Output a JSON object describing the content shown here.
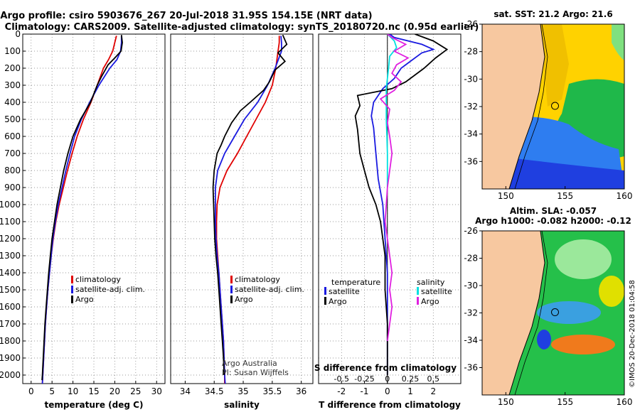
{
  "header": {
    "title_line1": "Argo profile: csiro 5903676_267 20-Jul-2018 31.95S 154.15E (NRT data)",
    "title_line2": "Climatology: CARS2009. Satellite-adjusted climatology: synTS_20180720.nc (0.95d earlier)"
  },
  "colors": {
    "climatology": "#e00000",
    "satellite": "#1a1ae0",
    "argo": "#000000",
    "sat_salinity": "#00e0e0",
    "argo_salinity": "#e020e0",
    "land": "#f7c8a0"
  },
  "chart_data": [
    {
      "id": "temperature",
      "type": "line",
      "xlabel": "temperature (deg C)",
      "ylabel": "",
      "xlim": [
        -2,
        32
      ],
      "xticks": [
        0,
        5,
        10,
        15,
        20,
        25,
        30
      ],
      "ylim": [
        2050,
        0
      ],
      "yticks": [
        0,
        100,
        200,
        300,
        400,
        500,
        600,
        700,
        800,
        900,
        1000,
        1100,
        1200,
        1300,
        1400,
        1500,
        1600,
        1700,
        1800,
        1900,
        2000
      ],
      "legend": [
        "climatology",
        "satellite-adj. clim.",
        "Argo"
      ],
      "series": [
        {
          "name": "climatology",
          "color": "#e00000",
          "points": [
            [
              20.4,
              10
            ],
            [
              20.0,
              50
            ],
            [
              19.5,
              100
            ],
            [
              18.5,
              150
            ],
            [
              17.3,
              200
            ],
            [
              15.8,
              300
            ],
            [
              14.3,
              400
            ],
            [
              12.5,
              500
            ],
            [
              11.0,
              600
            ],
            [
              9.8,
              700
            ],
            [
              8.7,
              800
            ],
            [
              7.7,
              900
            ],
            [
              6.7,
              1000
            ],
            [
              5.9,
              1100
            ],
            [
              5.3,
              1200
            ],
            [
              4.8,
              1300
            ],
            [
              4.4,
              1400
            ],
            [
              4.0,
              1500
            ],
            [
              3.7,
              1600
            ],
            [
              3.4,
              1700
            ],
            [
              3.2,
              1800
            ],
            [
              3.0,
              1900
            ],
            [
              2.8,
              2000
            ],
            [
              2.7,
              2050
            ]
          ]
        },
        {
          "name": "satellite-adj. clim.",
          "color": "#1a1ae0",
          "points": [
            [
              21.6,
              10
            ],
            [
              21.6,
              50
            ],
            [
              21.4,
              100
            ],
            [
              20.5,
              150
            ],
            [
              18.8,
              200
            ],
            [
              16.2,
              300
            ],
            [
              14.0,
              400
            ],
            [
              12.0,
              500
            ],
            [
              10.4,
              600
            ],
            [
              9.3,
              700
            ],
            [
              8.3,
              800
            ],
            [
              7.4,
              900
            ],
            [
              6.5,
              1000
            ],
            [
              5.8,
              1100
            ],
            [
              5.2,
              1200
            ],
            [
              4.8,
              1300
            ],
            [
              4.4,
              1400
            ],
            [
              4.0,
              1500
            ],
            [
              3.7,
              1600
            ],
            [
              3.4,
              1700
            ],
            [
              3.2,
              1800
            ],
            [
              3.0,
              1900
            ],
            [
              2.8,
              2000
            ],
            [
              2.7,
              2050
            ]
          ]
        },
        {
          "name": "Argo",
          "color": "#000000",
          "points": [
            [
              21.6,
              5
            ],
            [
              21.8,
              50
            ],
            [
              21.5,
              100
            ],
            [
              20.0,
              140
            ],
            [
              18.4,
              180
            ],
            [
              16.8,
              250
            ],
            [
              15.8,
              300
            ],
            [
              14.2,
              400
            ],
            [
              11.8,
              500
            ],
            [
              10.0,
              600
            ],
            [
              8.8,
              700
            ],
            [
              7.8,
              800
            ],
            [
              7.0,
              900
            ],
            [
              6.2,
              1000
            ],
            [
              5.6,
              1100
            ],
            [
              5.0,
              1200
            ],
            [
              4.6,
              1300
            ],
            [
              4.2,
              1400
            ],
            [
              3.9,
              1500
            ],
            [
              3.6,
              1600
            ],
            [
              3.3,
              1700
            ],
            [
              3.1,
              1800
            ],
            [
              2.9,
              1900
            ],
            [
              2.7,
              2000
            ],
            [
              2.6,
              2030
            ]
          ]
        }
      ]
    },
    {
      "id": "salinity",
      "type": "line",
      "xlabel": "salinity",
      "ylabel": "",
      "xlim": [
        33.75,
        36.2
      ],
      "xticks": [
        34,
        34.5,
        35,
        35.5,
        36
      ],
      "ylim": [
        2050,
        0
      ],
      "legend": [
        "climatology",
        "satellite-adj. clim.",
        "Argo"
      ],
      "annotation": [
        "Argo Australia",
        "PI: Susan Wijffels"
      ],
      "series": [
        {
          "name": "climatology",
          "color": "#e00000",
          "points": [
            [
              35.62,
              10
            ],
            [
              35.62,
              50
            ],
            [
              35.6,
              100
            ],
            [
              35.56,
              200
            ],
            [
              35.5,
              300
            ],
            [
              35.38,
              400
            ],
            [
              35.22,
              500
            ],
            [
              35.06,
              600
            ],
            [
              34.9,
              700
            ],
            [
              34.72,
              800
            ],
            [
              34.6,
              900
            ],
            [
              34.55,
              1000
            ],
            [
              34.54,
              1100
            ],
            [
              34.54,
              1200
            ],
            [
              34.56,
              1300
            ],
            [
              34.58,
              1400
            ],
            [
              34.6,
              1500
            ],
            [
              34.62,
              1600
            ],
            [
              34.64,
              1700
            ],
            [
              34.66,
              1800
            ],
            [
              34.67,
              1900
            ],
            [
              34.68,
              2000
            ],
            [
              34.68,
              2050
            ]
          ]
        },
        {
          "name": "satellite-adj. clim.",
          "color": "#1a1ae0",
          "points": [
            [
              35.65,
              10
            ],
            [
              35.66,
              50
            ],
            [
              35.66,
              100
            ],
            [
              35.55,
              200
            ],
            [
              35.42,
              300
            ],
            [
              35.25,
              400
            ],
            [
              35.02,
              500
            ],
            [
              34.85,
              600
            ],
            [
              34.68,
              700
            ],
            [
              34.56,
              800
            ],
            [
              34.52,
              900
            ],
            [
              34.52,
              1000
            ],
            [
              34.52,
              1100
            ],
            [
              34.53,
              1200
            ],
            [
              34.55,
              1300
            ],
            [
              34.58,
              1400
            ],
            [
              34.6,
              1500
            ],
            [
              34.62,
              1600
            ],
            [
              34.64,
              1700
            ],
            [
              34.66,
              1800
            ],
            [
              34.67,
              1900
            ],
            [
              34.68,
              2000
            ],
            [
              34.69,
              2050
            ]
          ]
        },
        {
          "name": "Argo",
          "color": "#000000",
          "points": [
            [
              35.68,
              5
            ],
            [
              35.75,
              60
            ],
            [
              35.6,
              110
            ],
            [
              35.72,
              160
            ],
            [
              35.55,
              210
            ],
            [
              35.45,
              280
            ],
            [
              35.35,
              330
            ],
            [
              35.12,
              400
            ],
            [
              34.95,
              450
            ],
            [
              34.8,
              520
            ],
            [
              34.68,
              600
            ],
            [
              34.62,
              650
            ],
            [
              34.55,
              700
            ],
            [
              34.5,
              800
            ],
            [
              34.48,
              900
            ],
            [
              34.49,
              1000
            ],
            [
              34.5,
              1100
            ],
            [
              34.51,
              1200
            ],
            [
              34.53,
              1300
            ],
            [
              34.56,
              1400
            ],
            [
              34.58,
              1500
            ],
            [
              34.6,
              1600
            ],
            [
              34.62,
              1700
            ],
            [
              34.64,
              1800
            ],
            [
              34.66,
              1900
            ],
            [
              34.67,
              2000
            ],
            [
              34.68,
              1980
            ]
          ]
        }
      ]
    },
    {
      "id": "difference",
      "type": "line",
      "xlabel": "T difference from climatology",
      "xlabel_top": "S difference from climatology",
      "xlim": [
        -3,
        3.2
      ],
      "xticks": [
        -2,
        -1,
        0,
        1,
        2
      ],
      "xticks_s": [
        "-0.5",
        "-0.25",
        "0",
        "0.25",
        "0.5"
      ],
      "ylim": [
        2050,
        0
      ],
      "legend_left_title": "temperature",
      "legend_right_title": "salinity",
      "legend_left": [
        "satellite",
        "Argo"
      ],
      "legend_right": [
        "satellite",
        "Argo"
      ],
      "series": [
        {
          "name": "T satellite",
          "color": "#1a1ae0",
          "points": [
            [
              0.1,
              0
            ],
            [
              0.3,
              20
            ],
            [
              1.5,
              60
            ],
            [
              2.0,
              90
            ],
            [
              1.5,
              110
            ],
            [
              1.0,
              160
            ],
            [
              0.6,
              200
            ],
            [
              0.3,
              260
            ],
            [
              -0.2,
              320
            ],
            [
              -0.6,
              400
            ],
            [
              -0.7,
              480
            ],
            [
              -0.6,
              550
            ],
            [
              -0.5,
              700
            ],
            [
              -0.4,
              850
            ],
            [
              -0.2,
              1000
            ],
            [
              -0.1,
              1200
            ],
            [
              0.0,
              1400
            ],
            [
              0.0,
              1600
            ],
            [
              0.0,
              2000
            ]
          ]
        },
        {
          "name": "T Argo",
          "color": "#000000",
          "points": [
            [
              1.2,
              0
            ],
            [
              2.0,
              40
            ],
            [
              2.6,
              90
            ],
            [
              2.1,
              140
            ],
            [
              1.6,
              200
            ],
            [
              1.2,
              240
            ],
            [
              0.8,
              280
            ],
            [
              0.2,
              320
            ],
            [
              -1.3,
              360
            ],
            [
              -1.2,
              420
            ],
            [
              -1.4,
              480
            ],
            [
              -1.3,
              560
            ],
            [
              -1.2,
              700
            ],
            [
              -1.0,
              800
            ],
            [
              -0.8,
              900
            ],
            [
              -0.5,
              1000
            ],
            [
              -0.3,
              1100
            ],
            [
              -0.2,
              1200
            ],
            [
              -0.1,
              1300
            ],
            [
              -0.1,
              1500
            ],
            [
              0.0,
              1700
            ],
            [
              0.0,
              1900
            ],
            [
              0.0,
              2000
            ]
          ]
        },
        {
          "name": "S satellite",
          "color": "#00e0e0",
          "points": [
            [
              0.0,
              0
            ],
            [
              0.3,
              40
            ],
            [
              0.4,
              80
            ],
            [
              0.1,
              130
            ],
            [
              0.05,
              200
            ],
            [
              0.0,
              260
            ],
            [
              -0.05,
              320
            ],
            [
              -0.05,
              400
            ],
            [
              -0.05,
              500
            ],
            [
              -0.02,
              600
            ],
            [
              0.0,
              700
            ],
            [
              0.0,
              800
            ],
            [
              0.0,
              900
            ]
          ]
        },
        {
          "name": "S Argo",
          "color": "#e020e0",
          "points": [
            [
              0.0,
              0
            ],
            [
              0.2,
              20
            ],
            [
              0.8,
              60
            ],
            [
              0.3,
              100
            ],
            [
              0.9,
              140
            ],
            [
              0.4,
              180
            ],
            [
              0.2,
              230
            ],
            [
              0.6,
              280
            ],
            [
              0.3,
              330
            ],
            [
              -0.3,
              380
            ],
            [
              0.1,
              440
            ],
            [
              0.0,
              520
            ],
            [
              0.1,
              600
            ],
            [
              0.2,
              700
            ],
            [
              0.1,
              800
            ],
            [
              0.0,
              900
            ],
            [
              -0.05,
              1000
            ],
            [
              -0.1,
              1100
            ],
            [
              0.0,
              1200
            ],
            [
              0.1,
              1300
            ],
            [
              0.2,
              1400
            ],
            [
              0.1,
              1500
            ],
            [
              0.2,
              1600
            ],
            [
              0.1,
              1700
            ],
            [
              0.0,
              1800
            ]
          ]
        }
      ]
    },
    {
      "id": "map_sst",
      "type": "heatmap",
      "title": "sat. SST: 21.2 Argo: 21.6",
      "lon_range": [
        148,
        160
      ],
      "lat_range": [
        -38,
        -26
      ],
      "xticks": [
        150,
        155,
        160
      ],
      "yticks": [
        -26,
        -28,
        -30,
        -32,
        -34,
        -36
      ],
      "float_position": [
        154.15,
        -31.95
      ]
    },
    {
      "id": "map_sla",
      "type": "heatmap",
      "title_line1": "Altim. SLA: -0.057",
      "title_line2": "Argo h1000: -0.082 h2000: -0.12",
      "lon_range": [
        148,
        160
      ],
      "lat_range": [
        -38,
        -26
      ],
      "xticks": [
        150,
        155,
        160
      ],
      "yticks": [
        -26,
        -28,
        -30,
        -32,
        -34,
        -36
      ],
      "float_position": [
        154.15,
        -31.95
      ]
    }
  ],
  "footer": {
    "credit": "©IMOS 20-Dec-2018 01:04:58"
  }
}
